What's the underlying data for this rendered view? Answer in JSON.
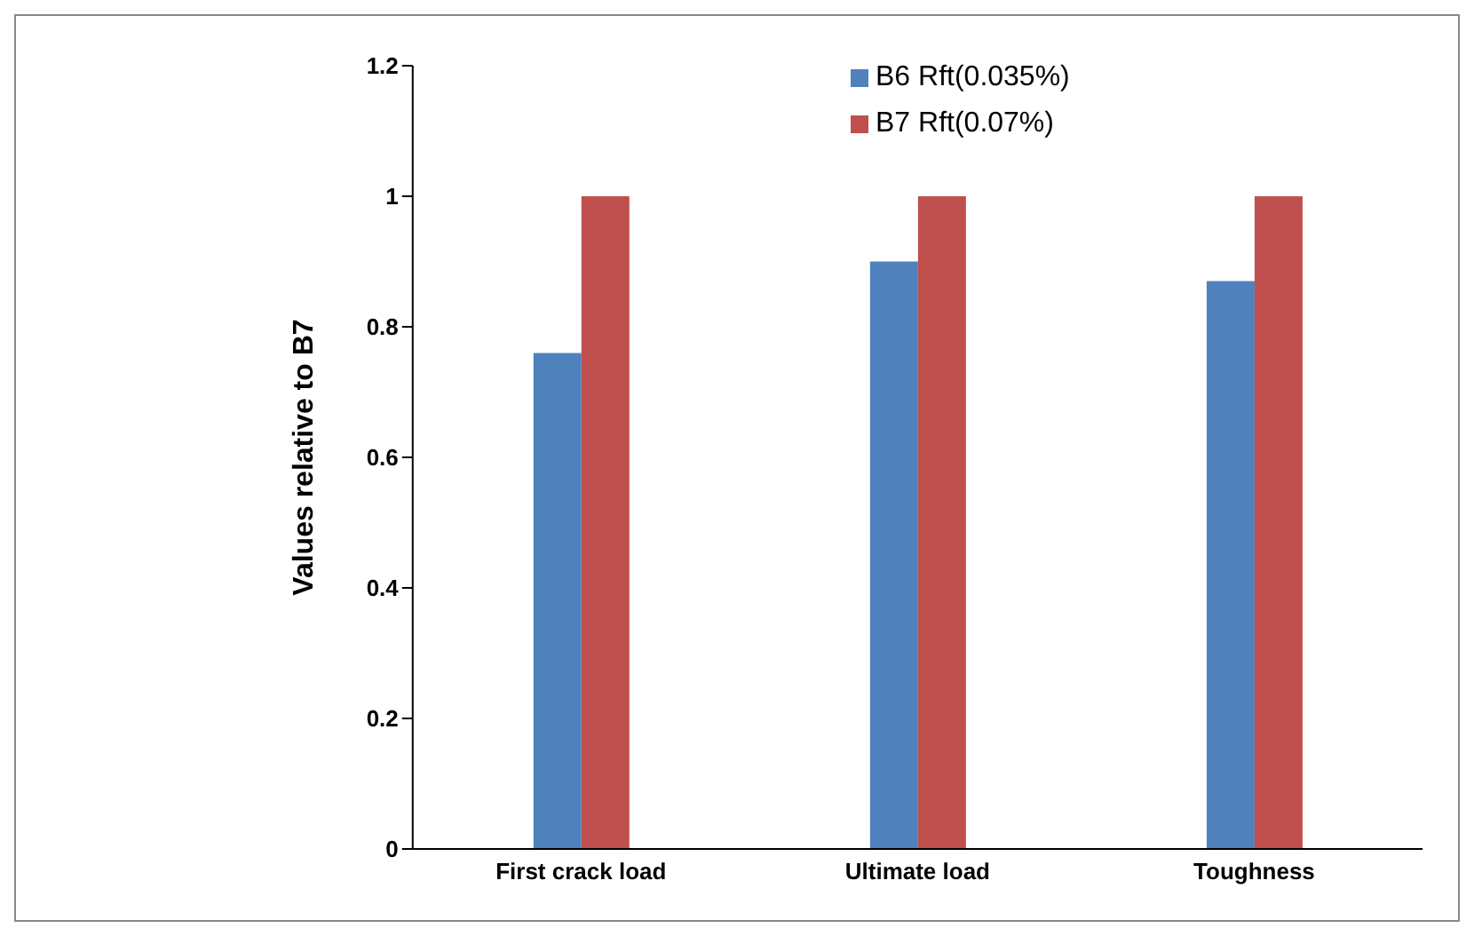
{
  "chart_data": {
    "type": "bar",
    "ylabel": "Values relative to B7",
    "categories": [
      "First crack load",
      "Ultimate load",
      "Toughness"
    ],
    "series": [
      {
        "name": "B6 Rft(0.035%)",
        "color": "#4f81bd",
        "values": [
          0.76,
          0.9,
          0.87
        ]
      },
      {
        "name": "B7 Rft(0.07%)",
        "color": "#c0504d",
        "values": [
          1,
          1,
          1
        ]
      }
    ],
    "ylim": [
      0,
      1.2
    ],
    "yticks": [
      0,
      0.2,
      0.4,
      0.6,
      0.8,
      1,
      1.2
    ],
    "grid": false,
    "legend": "top right"
  }
}
